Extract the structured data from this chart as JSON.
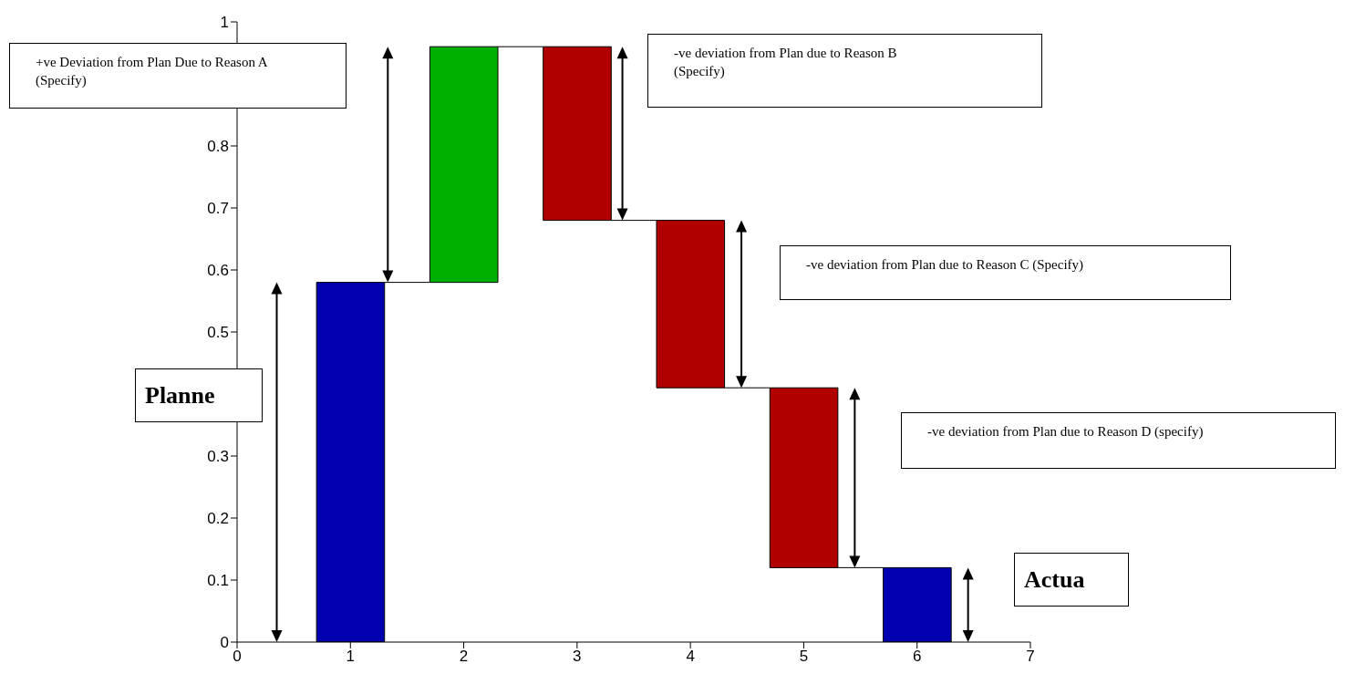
{
  "chart_data": {
    "type": "bar",
    "x": [
      1,
      2,
      3,
      4,
      5,
      6
    ],
    "values": [
      0.58,
      0.38,
      0.28,
      0.27,
      0.29,
      0.12
    ],
    "base": [
      0,
      0.58,
      0.68,
      0.41,
      0.12,
      0
    ],
    "colors": [
      "#0000b0",
      "#00b000",
      "#b00000",
      "#b00000",
      "#b00000",
      "#0000b0"
    ],
    "xlim": [
      0,
      7
    ],
    "xticks": [
      0,
      1,
      2,
      3,
      4,
      5,
      6,
      7
    ],
    "ylim": [
      0,
      1
    ],
    "yticks": [
      0,
      0.1,
      0.2,
      0.3,
      {
        "value": 0.4,
        "label": null
      },
      0.5,
      0.6,
      0.7,
      0.8,
      {
        "value": 0.9,
        "label": null
      },
      1
    ],
    "grid": false,
    "legend": false,
    "annotations": [
      "+ve Deviation from Plan Due to Reason A (Specify)",
      "-ve deviation from Plan due to Reason B (Specify)",
      "-ve deviation from Plan due to Reason C (Specify)",
      "-ve deviation from Plan due to Reason D (specify)",
      "Planne",
      "Actua"
    ]
  }
}
